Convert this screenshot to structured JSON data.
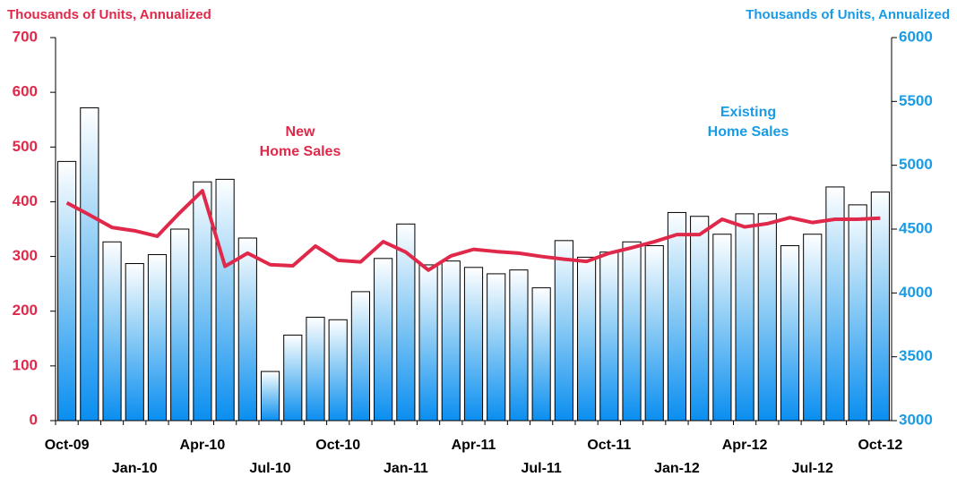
{
  "chart_data": {
    "type": "bar",
    "y_label": "Thousands of Units, Annualized",
    "y2_label": "Thousands of Units, Annualized",
    "categories": [
      "Oct-09",
      null,
      null,
      "Jan-10",
      null,
      null,
      "Apr-10",
      null,
      null,
      "Jul-10",
      null,
      null,
      "Oct-10",
      null,
      null,
      "Jan-11",
      null,
      null,
      "Apr-11",
      null,
      null,
      "Jul-11",
      null,
      null,
      "Oct-11",
      null,
      null,
      "Jan-12",
      null,
      null,
      "Apr-12",
      null,
      null,
      "Jul-12",
      null,
      null,
      "Oct-12"
    ],
    "series": [
      {
        "name": "Existing Home Sales",
        "type": "bar",
        "axis": "y2",
        "color": "#1a9be6",
        "values": [
          5030,
          5450,
          4400,
          4230,
          4300,
          4500,
          4870,
          4890,
          4430,
          3385,
          3670,
          3810,
          3790,
          4010,
          4270,
          4540,
          4220,
          4250,
          4200,
          4150,
          4180,
          4040,
          4410,
          4280,
          4320,
          4400,
          4370,
          4630,
          4600,
          4460,
          4620,
          4620,
          4370,
          4460,
          4830,
          4690,
          4790
        ]
      },
      {
        "name": "New Home Sales",
        "type": "line",
        "color": "#e0294a",
        "values": [
          398,
          376,
          353,
          347,
          337,
          380,
          420,
          282,
          306,
          285,
          283,
          319,
          293,
          290,
          327,
          308,
          275,
          301,
          313,
          309,
          306,
          300,
          295,
          291,
          306,
          316,
          327,
          340,
          340,
          368,
          354,
          360,
          371,
          362,
          368,
          368,
          370
        ]
      }
    ],
    "ylim": [
      0,
      700
    ],
    "yticks": [
      0,
      100,
      200,
      300,
      400,
      500,
      600,
      700
    ],
    "y2lim": [
      3000,
      6000
    ],
    "y2ticks": [
      3000,
      3500,
      4000,
      4500,
      5000,
      5500,
      6000
    ]
  }
}
